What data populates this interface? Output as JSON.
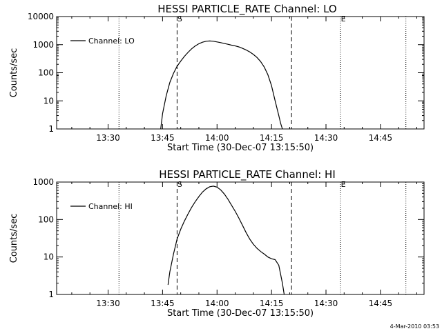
{
  "chart_data": [
    {
      "type": "line",
      "title": "HESSI PARTICLE_RATE Channel: LO",
      "xlabel": "Start Time (30-Dec-07 13:15:50)",
      "ylabel": "Counts/sec",
      "yscale": "log",
      "xlim": [
        "13:15:50",
        "14:57:00"
      ],
      "ylim": [
        1,
        10000
      ],
      "xticks": [
        "13:30",
        "13:45",
        "14:00",
        "14:15",
        "14:30",
        "14:45"
      ],
      "yticks": [
        "1",
        "10",
        "100",
        "1000",
        "10000"
      ],
      "legend": "top-left",
      "series": [
        {
          "name": "Channel: LO",
          "x": [
            "13:44:30",
            "13:45:00",
            "13:46:00",
            "13:47:00",
            "13:48:00",
            "13:49:00",
            "13:50:00",
            "13:51:00",
            "13:52:00",
            "13:53:00",
            "13:54:00",
            "13:55:00",
            "13:56:00",
            "13:57:00",
            "13:58:00",
            "13:59:00",
            "14:00:00",
            "14:01:00",
            "14:02:00",
            "14:03:00",
            "14:04:00",
            "14:05:00",
            "14:06:00",
            "14:07:00",
            "14:08:00",
            "14:09:00",
            "14:10:00",
            "14:11:00",
            "14:12:00",
            "14:13:00",
            "14:14:00",
            "14:15:00",
            "14:16:00",
            "14:17:00",
            "14:17:30",
            "14:18:00"
          ],
          "values": [
            1.0,
            3.5,
            15,
            45,
            95,
            170,
            260,
            380,
            530,
            710,
            900,
            1080,
            1220,
            1320,
            1350,
            1320,
            1250,
            1180,
            1100,
            1030,
            960,
            900,
            830,
            740,
            650,
            550,
            450,
            350,
            250,
            160,
            85,
            35,
            10,
            3,
            1.6,
            1.0
          ]
        }
      ],
      "vlines": [
        {
          "x": "13:33:00",
          "style": "dotted",
          "label": ""
        },
        {
          "x": "13:49:00",
          "style": "dashed",
          "label": "S"
        },
        {
          "x": "14:20:30",
          "style": "dashed",
          "label": ""
        },
        {
          "x": "14:34:00",
          "style": "dotted",
          "label": "E"
        },
        {
          "x": "14:52:00",
          "style": "dotted",
          "label": ""
        }
      ]
    },
    {
      "type": "line",
      "title": "HESSI PARTICLE_RATE Channel: HI",
      "xlabel": "Start Time (30-Dec-07 13:15:50)",
      "ylabel": "Counts/sec",
      "yscale": "log",
      "xlim": [
        "13:15:50",
        "14:57:00"
      ],
      "ylim": [
        1,
        1000
      ],
      "xticks": [
        "13:30",
        "13:45",
        "14:00",
        "14:15",
        "14:30",
        "14:45"
      ],
      "yticks": [
        "1",
        "10",
        "100",
        "1000"
      ],
      "legend": "top-left",
      "series": [
        {
          "name": "Channel: HI",
          "x": [
            "13:46:30",
            "13:47:00",
            "13:48:00",
            "13:49:00",
            "13:50:00",
            "13:51:00",
            "13:52:00",
            "13:53:00",
            "13:54:00",
            "13:55:00",
            "13:56:00",
            "13:57:00",
            "13:58:00",
            "13:59:00",
            "14:00:00",
            "14:01:00",
            "14:02:00",
            "14:03:00",
            "14:04:00",
            "14:05:00",
            "14:06:00",
            "14:07:00",
            "14:08:00",
            "14:09:00",
            "14:10:00",
            "14:11:00",
            "14:12:00",
            "14:13:00",
            "14:14:00",
            "14:15:00",
            "14:16:00",
            "14:17:00",
            "14:18:00",
            "14:18:30"
          ],
          "values": [
            1.8,
            4,
            12,
            30,
            55,
            90,
            140,
            210,
            300,
            410,
            540,
            660,
            750,
            780,
            730,
            620,
            480,
            350,
            240,
            165,
            110,
            70,
            45,
            30,
            22,
            17,
            14,
            12,
            10,
            9,
            8.5,
            6,
            2,
            1.0
          ]
        }
      ],
      "vlines": [
        {
          "x": "13:33:00",
          "style": "dotted",
          "label": ""
        },
        {
          "x": "13:49:00",
          "style": "dashed",
          "label": "S"
        },
        {
          "x": "14:20:30",
          "style": "dashed",
          "label": ""
        },
        {
          "x": "14:34:00",
          "style": "dotted",
          "label": "E"
        },
        {
          "x": "14:52:00",
          "style": "dotted",
          "label": ""
        }
      ]
    }
  ],
  "timestamp": "4-Mar-2010 03:53"
}
